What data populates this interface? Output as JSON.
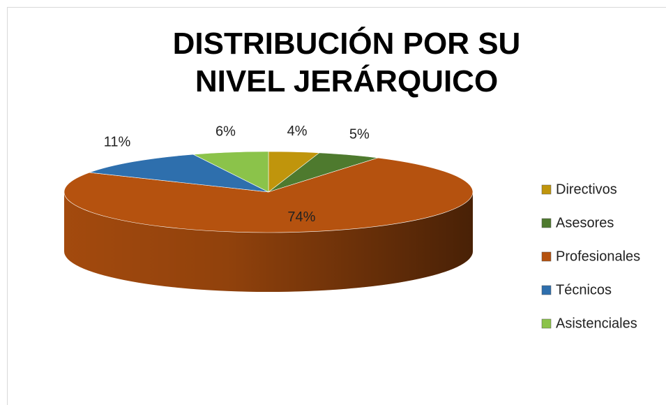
{
  "chart_data": {
    "type": "pie3d",
    "title": "DISTRIBUCIÓN POR SU NIVEL JERÁRQUICO",
    "categories": [
      "Directivos",
      "Asesores",
      "Profesionales",
      "Técnicos",
      "Asistenciales"
    ],
    "values": [
      4,
      5,
      74,
      11,
      6
    ],
    "value_labels": [
      "4%",
      "5%",
      "74%",
      "11%",
      "6%"
    ],
    "colors": [
      "#c0950c",
      "#4e7a2e",
      "#b5520f",
      "#2e6fad",
      "#8bc34a"
    ],
    "legend": "right"
  }
}
